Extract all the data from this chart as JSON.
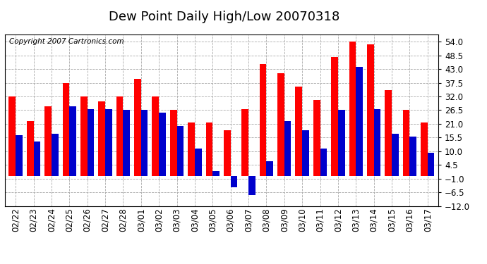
{
  "title": "Dew Point Daily High/Low 20070318",
  "copyright": "Copyright 2007 Cartronics.com",
  "dates": [
    "02/22",
    "02/23",
    "02/24",
    "02/25",
    "02/26",
    "02/27",
    "02/28",
    "03/01",
    "03/02",
    "03/03",
    "03/04",
    "03/05",
    "03/06",
    "03/07",
    "03/08",
    "03/09",
    "03/10",
    "03/11",
    "03/12",
    "03/13",
    "03/14",
    "03/15",
    "03/16",
    "03/17"
  ],
  "highs": [
    32.0,
    22.0,
    28.0,
    37.5,
    32.0,
    30.0,
    32.0,
    39.0,
    32.0,
    26.5,
    21.5,
    21.5,
    18.5,
    27.0,
    45.0,
    41.5,
    36.0,
    30.5,
    48.0,
    54.0,
    53.0,
    34.5,
    26.5,
    21.5
  ],
  "lows": [
    16.5,
    14.0,
    17.0,
    28.0,
    27.0,
    27.0,
    26.5,
    26.5,
    25.5,
    20.0,
    11.0,
    2.0,
    -4.5,
    -7.5,
    6.0,
    22.0,
    18.5,
    11.0,
    26.5,
    44.0,
    27.0,
    17.0,
    16.0,
    9.5
  ],
  "high_color": "#ff0000",
  "low_color": "#0000cc",
  "bg_color": "#ffffff",
  "grid_color": "#aaaaaa",
  "border_color": "#000000",
  "ylim": [
    -12.0,
    57.0
  ],
  "yticks": [
    -12.0,
    -6.5,
    -1.0,
    4.5,
    10.0,
    15.5,
    21.0,
    26.5,
    32.0,
    37.5,
    43.0,
    48.5,
    54.0
  ],
  "title_fontsize": 13,
  "copyright_fontsize": 7.5,
  "tick_fontsize": 8.5
}
